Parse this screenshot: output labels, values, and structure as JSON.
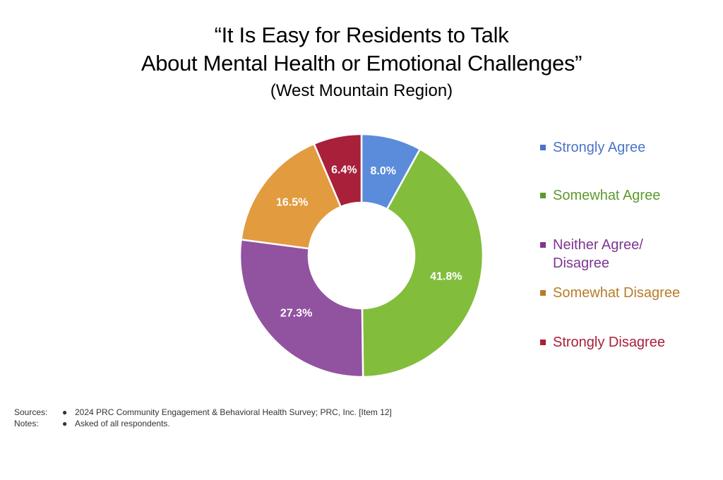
{
  "title": {
    "line1": "“It Is Easy for Residents to Talk",
    "line2": "About Mental Health or Emotional Challenges”",
    "subtitle": "(West Mountain Region)"
  },
  "chart_data": {
    "type": "pie",
    "donut": true,
    "title": "“It Is Easy for Residents to Talk About Mental Health or Emotional Challenges”",
    "subtitle": "(West Mountain Region)",
    "legend_position": "right",
    "slices": [
      {
        "label": "Strongly Agree",
        "value": 8.0,
        "value_label": "8.0%",
        "color": "#5B8BDB",
        "legend_color": "#4A74C9"
      },
      {
        "label": "Somewhat Agree",
        "value": 41.8,
        "value_label": "41.8%",
        "color": "#82BD3C",
        "legend_color": "#5E9A2E"
      },
      {
        "label": "Neither Agree/ Disagree",
        "legend_lines": [
          "Neither Agree/",
          "Disagree"
        ],
        "value": 27.3,
        "value_label": "27.3%",
        "color": "#9152A0",
        "legend_color": "#7E3690"
      },
      {
        "label": "Somewhat Disagree",
        "value": 16.5,
        "value_label": "16.5%",
        "color": "#E29B3E",
        "legend_color": "#B87C27"
      },
      {
        "label": "Strongly Disagree",
        "value": 6.4,
        "value_label": "6.4%",
        "color": "#A8203A",
        "legend_color": "#A8203A"
      }
    ]
  },
  "footer": {
    "sources_label": "Sources:",
    "sources_bullet": "●",
    "sources_text": "2024 PRC Community Engagement & Behavioral Health Survey; PRC, Inc. [Item 12]",
    "notes_label": "Notes:",
    "notes_bullet": "●",
    "notes_text": "Asked of all respondents."
  }
}
